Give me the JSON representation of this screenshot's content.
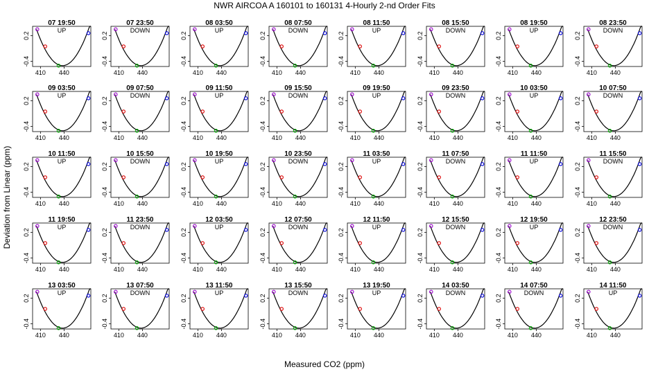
{
  "chart_data": {
    "type": "scatter",
    "title": "NWR   AIRCOA A   160101 to 160131   4-Hourly 2-nd Order Fits",
    "xlabel": "Measured CO2 (ppm)",
    "ylabel": "Deviation from Linear (ppm)",
    "xlim": [
      400,
      474
    ],
    "ylim": [
      -0.52,
      0.42
    ],
    "x_ticks": [
      410,
      440
    ],
    "y_ticks": [
      -0.4,
      0.2
    ],
    "y_tick_labels": [
      "-0.4",
      "0.2"
    ],
    "grid": false,
    "point_colors": {
      "purple": "#9900cc",
      "red": "#dd0000",
      "green": "#00aa00",
      "blue": "#0000dd"
    },
    "curve_color": "#000000",
    "panels": [
      {
        "title": "07 19:50",
        "direction": "UP"
      },
      {
        "title": "07 23:50",
        "direction": "DOWN"
      },
      {
        "title": "08 03:50",
        "direction": "UP"
      },
      {
        "title": "08 07:50",
        "direction": "DOWN"
      },
      {
        "title": "08 11:50",
        "direction": "UP"
      },
      {
        "title": "08 15:50",
        "direction": "DOWN"
      },
      {
        "title": "08 19:50",
        "direction": "UP"
      },
      {
        "title": "08 23:50",
        "direction": "DOWN"
      },
      {
        "title": "09 03:50",
        "direction": "UP"
      },
      {
        "title": "09 07:50",
        "direction": "DOWN"
      },
      {
        "title": "09 11:50",
        "direction": "UP"
      },
      {
        "title": "09 15:50",
        "direction": "DOWN"
      },
      {
        "title": "09 19:50",
        "direction": "UP"
      },
      {
        "title": "09 23:50",
        "direction": "DOWN"
      },
      {
        "title": "10 03:50",
        "direction": "UP"
      },
      {
        "title": "10 07:50",
        "direction": "DOWN"
      },
      {
        "title": "10 11:50",
        "direction": "UP"
      },
      {
        "title": "10 15:50",
        "direction": "DOWN"
      },
      {
        "title": "10 19:50",
        "direction": "UP"
      },
      {
        "title": "10 23:50",
        "direction": "DOWN"
      },
      {
        "title": "11 03:50",
        "direction": "UP"
      },
      {
        "title": "11 07:50",
        "direction": "DOWN"
      },
      {
        "title": "11 11:50",
        "direction": "UP"
      },
      {
        "title": "11 15:50",
        "direction": "DOWN"
      },
      {
        "title": "11 19:50",
        "direction": "UP"
      },
      {
        "title": "11 23:50",
        "direction": "DOWN"
      },
      {
        "title": "12 03:50",
        "direction": "UP"
      },
      {
        "title": "12 07:50",
        "direction": "DOWN"
      },
      {
        "title": "12 11:50",
        "direction": "UP"
      },
      {
        "title": "12 15:50",
        "direction": "DOWN"
      },
      {
        "title": "12 19:50",
        "direction": "UP"
      },
      {
        "title": "12 23:50",
        "direction": "DOWN"
      },
      {
        "title": "13 03:50",
        "direction": "UP"
      },
      {
        "title": "13 07:50",
        "direction": "DOWN"
      },
      {
        "title": "13 11:50",
        "direction": "UP"
      },
      {
        "title": "13 15:50",
        "direction": "DOWN"
      },
      {
        "title": "13 19:50",
        "direction": "UP"
      },
      {
        "title": "14 03:50",
        "direction": "DOWN"
      },
      {
        "title": "14 07:50",
        "direction": "DOWN"
      },
      {
        "title": "14 11:50",
        "direction": "UP"
      }
    ],
    "typical_points": [
      {
        "series": "purple",
        "x": 406,
        "y": 0.35
      },
      {
        "series": "red",
        "x": 416,
        "y": -0.05
      },
      {
        "series": "green",
        "x": 433,
        "y": -0.5
      },
      {
        "series": "blue",
        "x": 471,
        "y": 0.26
      }
    ],
    "fit": {
      "vertex_x": 438,
      "vertex_y": -0.5,
      "curvature": 0.00078
    }
  }
}
